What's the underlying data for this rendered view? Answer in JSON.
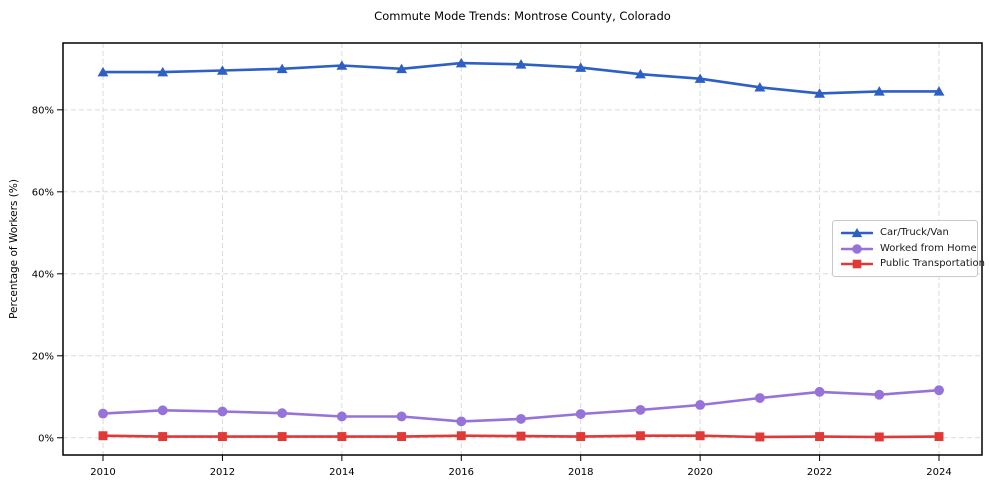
{
  "chart_data": {
    "type": "line",
    "title": "Commute Mode Trends: Montrose County, Colorado",
    "xlabel": "",
    "ylabel": "Percentage of Workers (%)",
    "x": [
      2010,
      2011,
      2012,
      2013,
      2014,
      2015,
      2016,
      2017,
      2018,
      2019,
      2020,
      2021,
      2022,
      2023,
      2024
    ],
    "xtick_labels": [
      "2010",
      "2012",
      "2014",
      "2016",
      "2018",
      "2020",
      "2022",
      "2024"
    ],
    "ytick_values": [
      0,
      20,
      40,
      60,
      80
    ],
    "ytick_labels": [
      "0%",
      "20%",
      "40%",
      "60%",
      "80%"
    ],
    "ylim": [
      -4.2,
      96.3
    ],
    "grid": true,
    "grid_style": "dashed",
    "legend_position": "center-right",
    "colors": {
      "car_truck_van": "#2d5fc4",
      "worked_from_home": "#9673d9",
      "public_transportation": "#e03a38",
      "gridline": "#d9d9d9",
      "axis_border": "#000000"
    },
    "series": [
      {
        "name": "Car/Truck/Van",
        "color": "#2d5fc4",
        "marker": "triangle",
        "values": [
          89.2,
          89.2,
          89.6,
          90.0,
          90.8,
          90.0,
          91.4,
          91.1,
          90.3,
          88.7,
          87.6,
          85.5,
          84.0,
          84.5,
          84.5
        ]
      },
      {
        "name": "Worked from Home",
        "color": "#9673d9",
        "marker": "circle",
        "values": [
          5.9,
          6.7,
          6.4,
          6.0,
          5.2,
          5.2,
          4.0,
          4.6,
          5.8,
          6.8,
          8.0,
          9.7,
          11.2,
          10.5,
          11.6
        ]
      },
      {
        "name": "Public Transportation",
        "color": "#e03a38",
        "marker": "square",
        "values": [
          0.5,
          0.3,
          0.3,
          0.3,
          0.3,
          0.3,
          0.5,
          0.4,
          0.3,
          0.5,
          0.5,
          0.2,
          0.3,
          0.2,
          0.3
        ]
      }
    ]
  }
}
